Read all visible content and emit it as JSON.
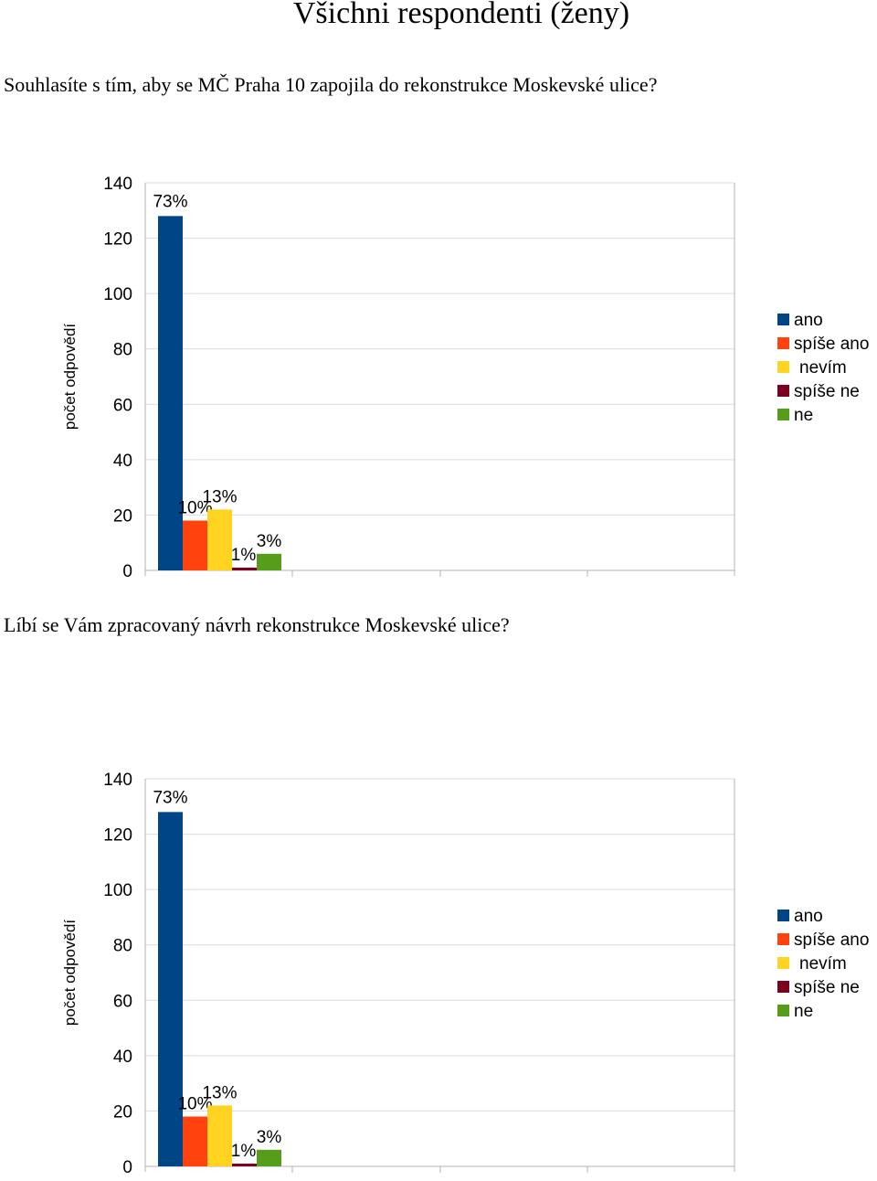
{
  "page": {
    "title": "Všichni respondenti (ženy)"
  },
  "colors": {
    "ano": "#004586",
    "spise_ano": "#ff420e",
    "nevim": "#ffd320",
    "spise_ne": "#7e0021",
    "ne": "#579d1c",
    "grid": "#dcdcdc",
    "axis": "#b3b3b3",
    "text": "#000000"
  },
  "questions": [
    {
      "text": "Souhlasíte s tím, aby se MČ Praha 10 zapojila do rekonstrukce Moskevské ulice?"
    },
    {
      "text": "Líbí se Vám zpracovaný návrh rekonstrukce Moskevské ulice?"
    }
  ],
  "chart_data": [
    {
      "type": "bar",
      "title": "",
      "xlabel": "",
      "ylabel": "počet odpovědí",
      "ylim": [
        0,
        140
      ],
      "yticks": [
        0,
        20,
        40,
        60,
        80,
        100,
        120,
        140
      ],
      "grid": true,
      "legend_position": "right",
      "series": [
        {
          "name": "ano",
          "value": 128,
          "label": "73%",
          "color": "#004586"
        },
        {
          "name": "spíše ano",
          "value": 18,
          "label": "10%",
          "color": "#ff420e"
        },
        {
          "name": "nevím",
          "value": 22,
          "label": "13%",
          "color": "#ffd320"
        },
        {
          "name": "spíše ne",
          "value": 1,
          "label": "1%",
          "color": "#7e0021"
        },
        {
          "name": "ne",
          "value": 6,
          "label": "3%",
          "color": "#579d1c"
        }
      ]
    },
    {
      "type": "bar",
      "title": "",
      "xlabel": "",
      "ylabel": "počet odpovědí",
      "ylim": [
        0,
        140
      ],
      "yticks": [
        0,
        20,
        40,
        60,
        80,
        100,
        120,
        140
      ],
      "grid": true,
      "legend_position": "right",
      "series": [
        {
          "name": "ano",
          "value": 128,
          "label": "73%",
          "color": "#004586"
        },
        {
          "name": "spíše ano",
          "value": 18,
          "label": "10%",
          "color": "#ff420e"
        },
        {
          "name": "nevím",
          "value": 22,
          "label": "13%",
          "color": "#ffd320"
        },
        {
          "name": "spíše ne",
          "value": 1,
          "label": "1%",
          "color": "#7e0021"
        },
        {
          "name": "ne",
          "value": 6,
          "label": "3%",
          "color": "#579d1c"
        }
      ]
    }
  ]
}
